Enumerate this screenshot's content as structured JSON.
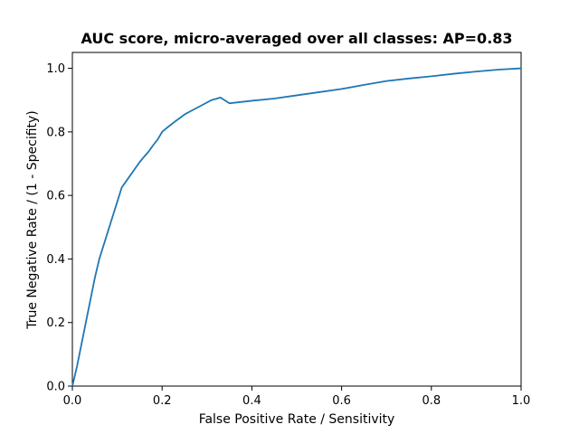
{
  "chart_data": {
    "type": "line",
    "title": "AUC score, micro-averaged over all classes: AP=0.83",
    "xlabel": "False Positive Rate / Sensitivity",
    "ylabel": "True Negative Rate / (1 - Specifity)",
    "xlim": [
      0.0,
      1.0
    ],
    "ylim": [
      0.0,
      1.05
    ],
    "xticks": [
      0.0,
      0.2,
      0.4,
      0.6,
      0.8,
      1.0
    ],
    "yticks": [
      0.0,
      0.2,
      0.4,
      0.6,
      0.8,
      1.0
    ],
    "xtick_labels": [
      "0.0",
      "0.2",
      "0.4",
      "0.6",
      "0.8",
      "1.0"
    ],
    "ytick_labels": [
      "0.0",
      "0.2",
      "0.4",
      "0.6",
      "0.8",
      "1.0"
    ],
    "grid": false,
    "series": [
      {
        "color": "#1f77b4",
        "x": [
          0.0,
          0.01,
          0.02,
          0.03,
          0.04,
          0.05,
          0.06,
          0.07,
          0.08,
          0.09,
          0.1,
          0.11,
          0.12,
          0.13,
          0.14,
          0.15,
          0.16,
          0.17,
          0.18,
          0.19,
          0.2,
          0.21,
          0.22,
          0.23,
          0.24,
          0.25,
          0.27,
          0.29,
          0.31,
          0.33,
          0.35,
          0.4,
          0.45,
          0.5,
          0.55,
          0.6,
          0.65,
          0.7,
          0.75,
          0.8,
          0.85,
          0.9,
          0.95,
          1.0
        ],
        "y": [
          0.0,
          0.06,
          0.13,
          0.2,
          0.27,
          0.34,
          0.4,
          0.445,
          0.49,
          0.535,
          0.58,
          0.625,
          0.645,
          0.665,
          0.685,
          0.705,
          0.722,
          0.738,
          0.758,
          0.776,
          0.8,
          0.812,
          0.823,
          0.834,
          0.844,
          0.855,
          0.87,
          0.885,
          0.9,
          0.908,
          0.89,
          0.898,
          0.905,
          0.915,
          0.925,
          0.935,
          0.948,
          0.96,
          0.968,
          0.975,
          0.983,
          0.99,
          0.996,
          1.0
        ]
      }
    ]
  }
}
